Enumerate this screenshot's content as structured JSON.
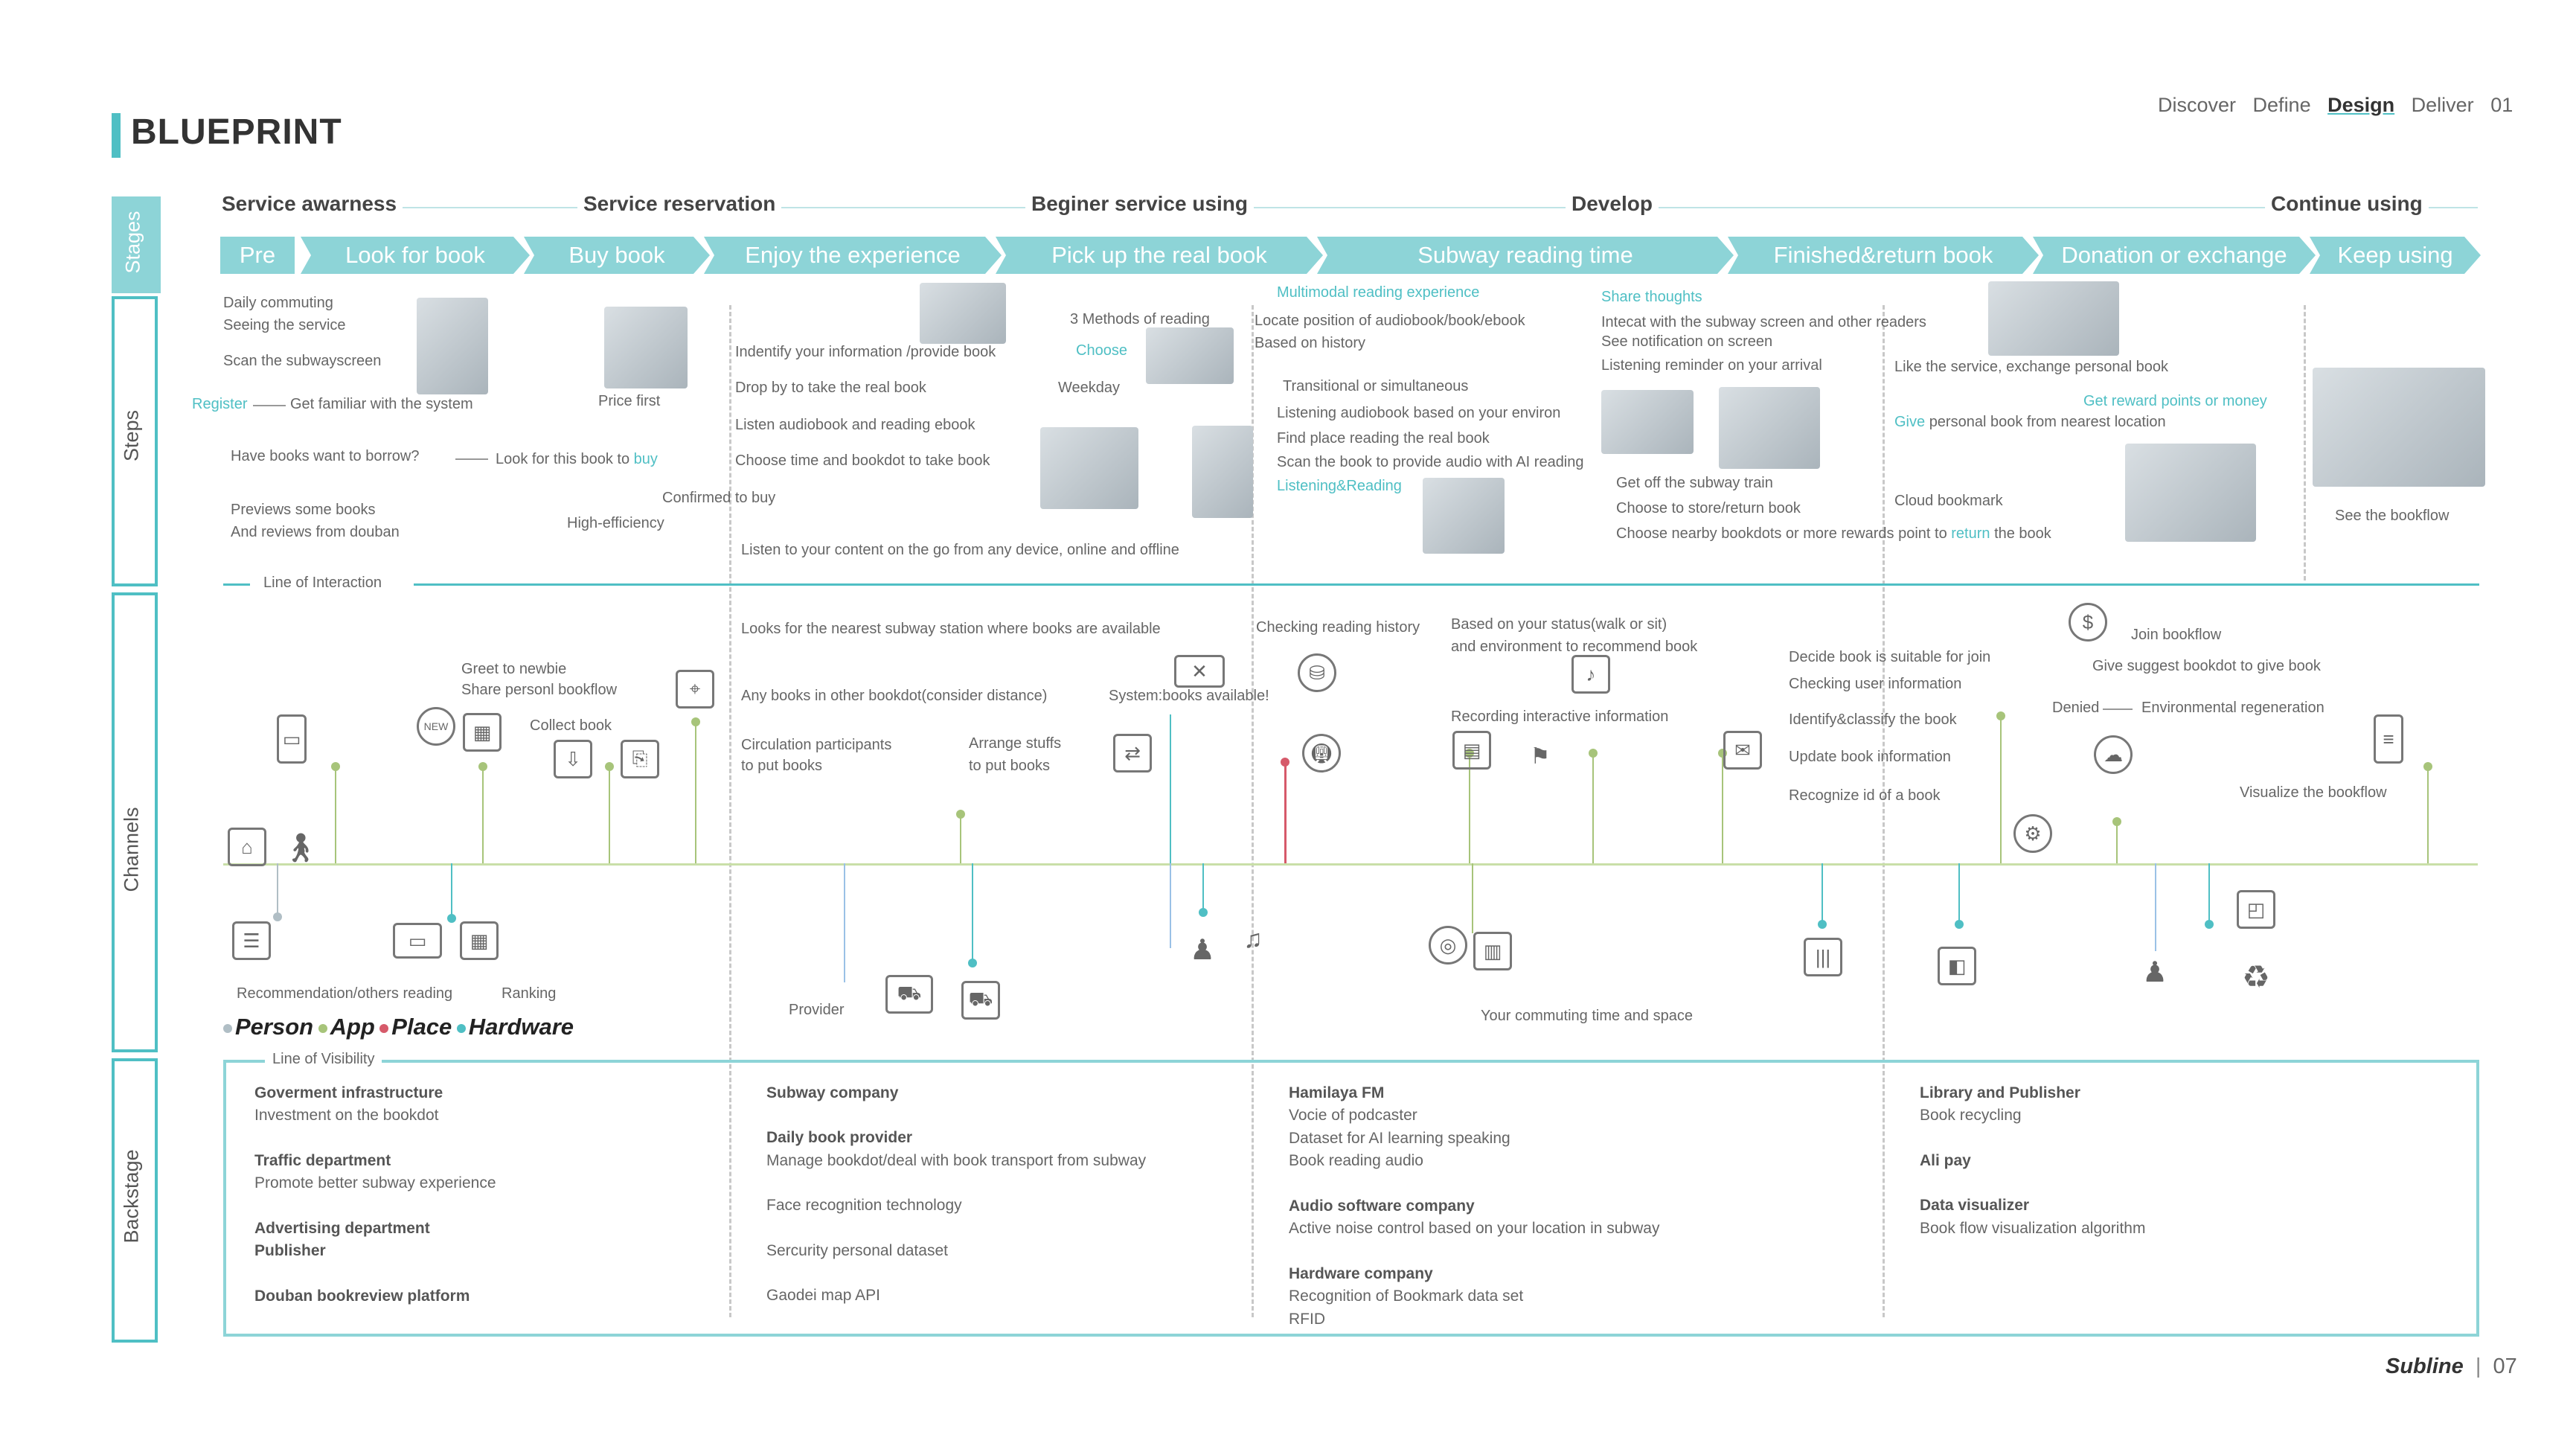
{
  "nav": {
    "discover": "Discover",
    "define": "Define",
    "design": "Design",
    "deliver": "Deliver",
    "num": "01"
  },
  "title": "BLUEPRINT",
  "side_labels": {
    "stages": "Stages",
    "steps": "Steps",
    "channels": "Channels",
    "backstage": "Backstage"
  },
  "stage_heads": [
    "Service awarness",
    "Service reservation",
    "Beginer service using",
    "Develop",
    "Continue using"
  ],
  "chevrons": [
    "Pre",
    "Look for book",
    "Buy book",
    "Enjoy the experience",
    "Pick up the real book",
    "Subway reading time",
    "Finished&return book",
    "Donation or exchange",
    "Keep using"
  ],
  "steps": {
    "s1": "Daily commuting",
    "s2": "Seeing the service",
    "s3": "Scan the subwayscreen",
    "s4": "Register",
    "s5": "Get familiar with the system",
    "s6": "Have books want to borrow?",
    "s7": "Look for this book to",
    "s7b": "buy",
    "s8": "Previews some books",
    "s9": "And reviews from douban",
    "s10": "Price first",
    "s11": "Confirmed to buy",
    "s12": "High-efficiency",
    "s13": "Indentify your information /provide book",
    "s14": "Choose",
    "s15": "Weekday",
    "s16": "3 Methods of reading",
    "s17": "Drop by to take the real book",
    "s18": "Listen audiobook and reading ebook",
    "s19": "Choose time and bookdot to take book",
    "s20": "Listen to your content on the go from any device, online and offline",
    "s21": "Multimodal reading experience",
    "s22": "Locate position of audiobook/book/ebook",
    "s23": "Based on history",
    "s24": "Transitional or simultaneous",
    "s25": "Listening audiobook based on your environ",
    "s26": "Find place reading the real book",
    "s27": "Scan the book to provide audio with AI reading",
    "s28": "Listening&Reading",
    "s29": "Share thoughts",
    "s30": "Intecat with the subway screen and other readers",
    "s31": "See notification on screen",
    "s32": "Listening reminder on your arrival",
    "s33": "Get off the subway train",
    "s34": "Choose to store/return book",
    "s35": "Choose nearby bookdots or more rewards point to",
    "s35b": "return",
    "s35c": "the book",
    "s36": "Like the service, exchange personal book",
    "s37": "Get reward points or money",
    "s38": "Give",
    "s38b": "personal book from nearest location",
    "s39": "Cloud bookmark",
    "s40": "See the bookflow"
  },
  "interaction_line": "Line of Interaction",
  "visibility_line": "Line of Visibility",
  "channels": {
    "c1": "Greet to newbie",
    "c2": "Share personl bookflow",
    "c3": "Collect book",
    "c4": "Looks for the nearest subway station where books are available",
    "c5": "Any books in other bookdot(consider distance)",
    "c6": "System:books available!",
    "c7": "Circulation participants",
    "c8": "to put books",
    "c9": "Arrange stuffs",
    "c10": "to put books",
    "c11": "Checking reading history",
    "c12": "Based on your status(walk or sit)",
    "c13": "and environment to recommend book",
    "c14": "Recording interactive information",
    "c15": "Decide book is suitable for join",
    "c16": "Checking user information",
    "c17": "Identify&classify the book",
    "c18": "Update book information",
    "c19": "Recognize id of a book",
    "c20": "Join bookflow",
    "c21": "Give suggest bookdot to give book",
    "c22": "Denied",
    "c23": "Environmental regeneration",
    "c24": "Visualize the bookflow",
    "c25": "Recommendation/others reading",
    "c26": "Ranking",
    "c27": "Provider",
    "c28": "Your commuting time and space"
  },
  "legend": [
    {
      "label": "Person",
      "color": "#b0bec5"
    },
    {
      "label": "App",
      "color": "#a7c47a"
    },
    {
      "label": "Place",
      "color": "#d65a6a"
    },
    {
      "label": "Hardware",
      "color": "#4fbfc4"
    }
  ],
  "backstage": {
    "col1": [
      {
        "h": "Goverment infrastructure",
        "b": "Investment on the bookdot"
      },
      {
        "h": "Traffic department",
        "b": "Promote better subway experience"
      },
      {
        "h": "Advertising department",
        "b": "Publisher"
      },
      {
        "h": "Douban bookreview platform",
        "b": ""
      }
    ],
    "col2": [
      {
        "h": "Subway company",
        "b": ""
      },
      {
        "h": "Daily book provider",
        "b": "Manage bookdot/deal with book transport from subway"
      },
      {
        "h": "",
        "b": "Face recognition technology"
      },
      {
        "h": "",
        "b": "Sercurity personal dataset"
      },
      {
        "h": "",
        "b": "Gaodei map API"
      }
    ],
    "col3": [
      {
        "h": "Hamilaya FM",
        "b1": "Vocie of podcaster",
        "b2": "Dataset for AI learning speaking",
        "b3": "Book reading audio"
      },
      {
        "h": "Audio software company",
        "b1": "Active noise control based on your location in subway"
      },
      {
        "h": "Hardware company",
        "b1": "Recognition of Bookmark data set",
        "b2": "RFID"
      }
    ],
    "col4": [
      {
        "h": "Library and Publisher",
        "b": "Book recycling"
      },
      {
        "h": "Ali pay",
        "b": ""
      },
      {
        "h": "Data visualizer",
        "b": "Book flow visualization algorithm"
      }
    ]
  },
  "footer": {
    "brand": "Subline",
    "page": "07"
  },
  "colors": {
    "accent": "#4fbfc4",
    "chevron": "#8dd4d7",
    "app_line": "#a7c47a",
    "place": "#d65a6a"
  }
}
